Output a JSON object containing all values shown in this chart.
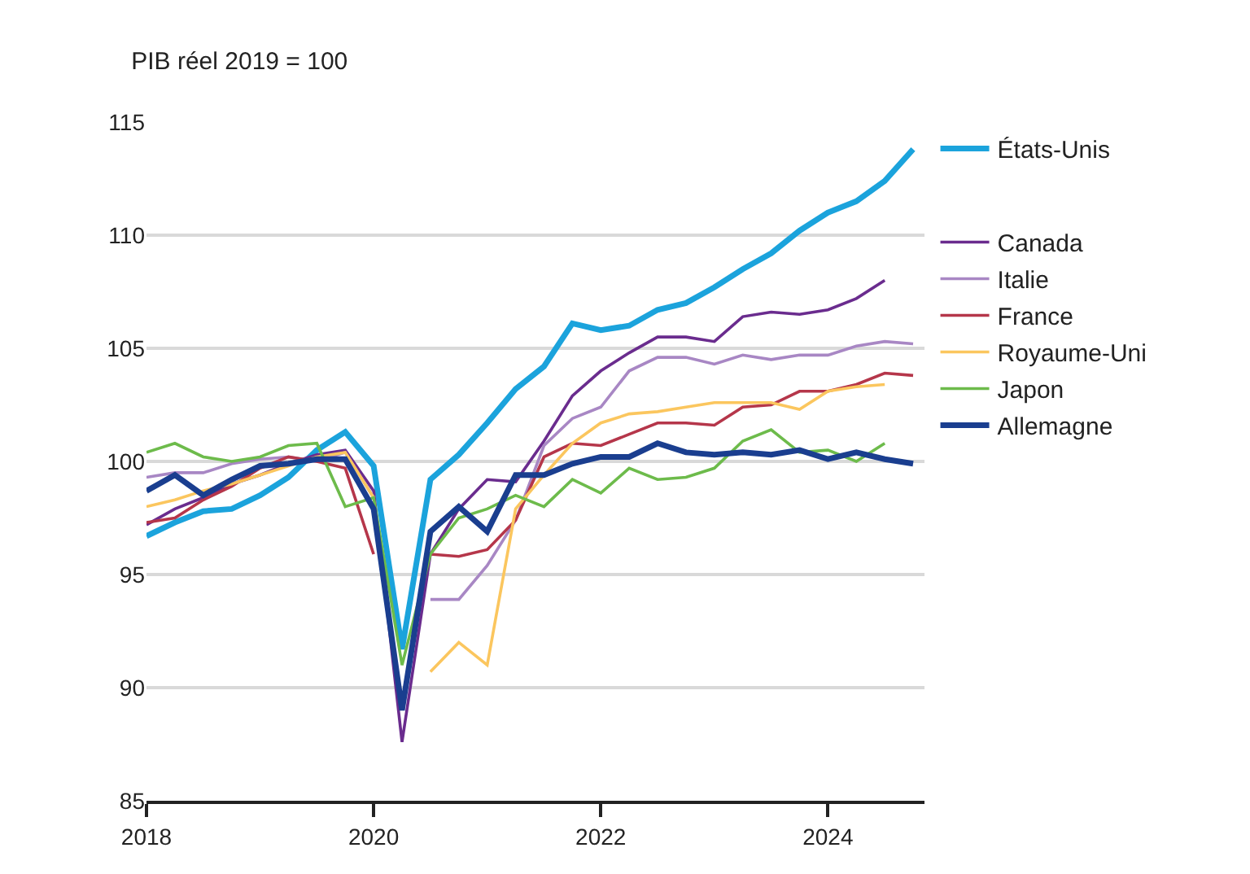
{
  "chart_data": {
    "type": "line",
    "title": "PIB réel 2019 = 100",
    "x": [
      2018,
      2018.25,
      2018.5,
      2018.75,
      2019,
      2019.25,
      2019.5,
      2019.75,
      2020,
      2020.25,
      2020.5,
      2020.75,
      2021,
      2021.25,
      2021.5,
      2021.75,
      2022,
      2022.25,
      2022.5,
      2022.75,
      2023,
      2023.25,
      2023.5,
      2023.75,
      2024,
      2024.25,
      2024.5,
      2024.75
    ],
    "xlim": [
      2018,
      2024.85
    ],
    "xticks": [
      2018,
      2020,
      2022,
      2024
    ],
    "ylim": [
      85,
      115
    ],
    "yticks": [
      85,
      90,
      95,
      100,
      105,
      110,
      115
    ],
    "grid": "y",
    "legend": "right",
    "line_style": "solid",
    "marker": "none",
    "series": [
      {
        "name": "États-Unis",
        "color": "#1ba3dc",
        "values": [
          96.7,
          97.3,
          97.8,
          97.9,
          98.5,
          99.3,
          100.5,
          101.3,
          99.8,
          91.7,
          99.2,
          100.3,
          101.7,
          103.2,
          104.2,
          106.1,
          105.8,
          106.0,
          106.7,
          107.0,
          107.7,
          108.5,
          109.2,
          110.2,
          111.0,
          111.5,
          112.4,
          113.8
        ]
      },
      {
        "name": "Canada",
        "color": "#6a2c8e",
        "values": [
          97.2,
          97.9,
          98.4,
          99.0,
          99.4,
          99.9,
          100.3,
          100.5,
          98.7,
          87.6,
          95.9,
          97.9,
          99.2,
          99.1,
          100.9,
          102.9,
          104.0,
          104.8,
          105.5,
          105.5,
          105.3,
          106.4,
          106.6,
          106.5,
          106.7,
          107.2,
          108.0,
          null
        ]
      },
      {
        "name": "Italie",
        "color": "#a887c4",
        "values": [
          99.3,
          99.5,
          99.5,
          99.9,
          100.1,
          100.2,
          100.0,
          100.4,
          98.4,
          null,
          93.9,
          93.9,
          95.4,
          97.4,
          100.7,
          101.9,
          102.4,
          104.0,
          104.6,
          104.6,
          104.3,
          104.7,
          104.5,
          104.7,
          104.7,
          105.1,
          105.3,
          105.2
        ]
      },
      {
        "name": "France",
        "color": "#b5364a",
        "values": [
          97.3,
          97.5,
          98.3,
          98.9,
          99.7,
          100.2,
          100.0,
          99.7,
          95.9,
          null,
          95.9,
          95.8,
          96.1,
          97.4,
          100.2,
          100.8,
          100.7,
          101.2,
          101.7,
          101.7,
          101.6,
          102.4,
          102.5,
          103.1,
          103.1,
          103.4,
          103.9,
          103.8
        ]
      },
      {
        "name": "Royaume-Uni",
        "color": "#fbc65e",
        "values": [
          98.0,
          98.3,
          98.7,
          99.0,
          99.4,
          99.8,
          100.2,
          100.4,
          98.4,
          null,
          90.7,
          92.0,
          91.0,
          97.9,
          99.4,
          100.8,
          101.7,
          102.1,
          102.2,
          102.4,
          102.6,
          102.6,
          102.6,
          102.3,
          103.1,
          103.3,
          103.4,
          null
        ]
      },
      {
        "name": "Japon",
        "color": "#6dbb4b",
        "values": [
          100.4,
          100.8,
          100.2,
          100.0,
          100.2,
          100.7,
          100.8,
          98.0,
          98.4,
          91.0,
          95.9,
          97.5,
          97.9,
          98.5,
          98.0,
          99.2,
          98.6,
          99.7,
          99.2,
          99.3,
          99.7,
          100.9,
          101.4,
          100.4,
          100.5,
          100.0,
          100.8,
          null
        ]
      },
      {
        "name": "Allemagne",
        "color": "#1a3e8f",
        "values": [
          98.7,
          99.4,
          98.5,
          99.2,
          99.8,
          99.9,
          100.1,
          100.1,
          97.9,
          89.0,
          96.9,
          98.0,
          96.9,
          99.4,
          99.4,
          99.9,
          100.2,
          100.2,
          100.8,
          100.4,
          100.3,
          100.4,
          100.3,
          100.5,
          100.1,
          100.4,
          100.1,
          99.9
        ]
      }
    ]
  }
}
